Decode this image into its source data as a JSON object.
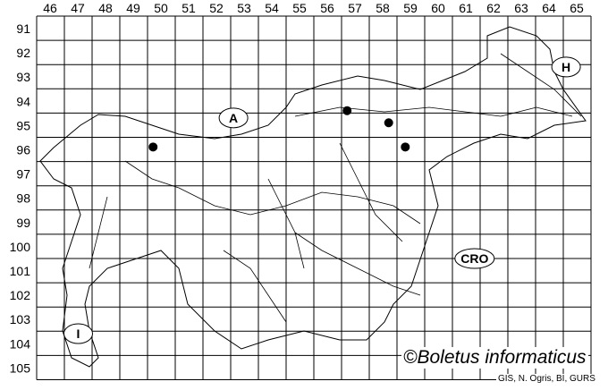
{
  "map": {
    "columns": [
      "46",
      "47",
      "48",
      "49",
      "50",
      "51",
      "52",
      "53",
      "54",
      "55",
      "56",
      "57",
      "58",
      "59",
      "60",
      "61",
      "62",
      "63",
      "64",
      "65"
    ],
    "rows": [
      "91",
      "92",
      "93",
      "94",
      "95",
      "96",
      "97",
      "98",
      "99",
      "100",
      "101",
      "102",
      "103",
      "104",
      "105"
    ],
    "country_labels": [
      {
        "text": "A",
        "col": 52.6,
        "row": 94.7
      },
      {
        "text": "H",
        "col": 64.6,
        "row": 92.6
      },
      {
        "text": "CRO",
        "col": 61.3,
        "row": 100.5
      },
      {
        "text": "I",
        "col": 47.0,
        "row": 103.6
      }
    ],
    "records": [
      {
        "col": 49.7,
        "row": 95.9
      },
      {
        "col": 56.7,
        "row": 94.4
      },
      {
        "col": 58.2,
        "row": 94.9
      },
      {
        "col": 58.8,
        "row": 95.9
      }
    ],
    "colors": {
      "line": "#000000",
      "background": "#ffffff",
      "dot": "#000000"
    }
  },
  "credit": "©Boletus informaticus",
  "source": "GIS, N. Ogris, BI, GURS"
}
